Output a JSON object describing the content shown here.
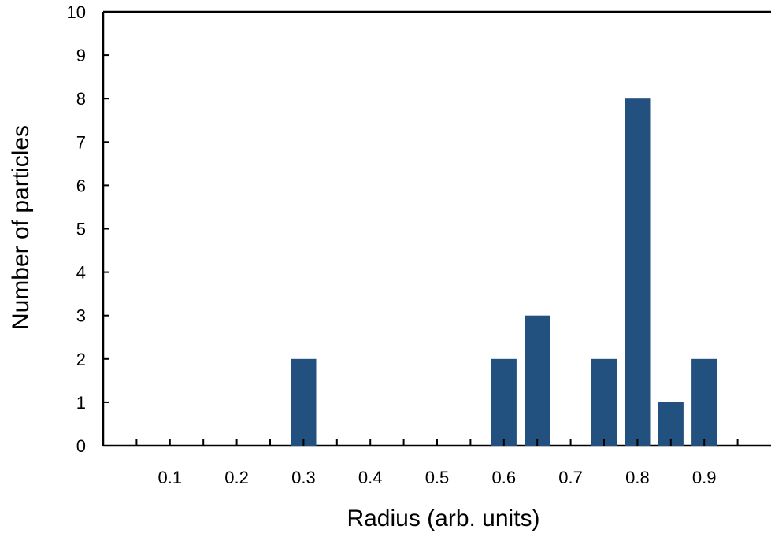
{
  "chart_data": {
    "type": "bar",
    "title": "",
    "xlabel": "Radius (arb. units)",
    "ylabel": "Number of  particles",
    "ylim": [
      0,
      10
    ],
    "yticks": [
      "0",
      "1",
      "2",
      "3",
      "4",
      "5",
      "6",
      "7",
      "8",
      "9",
      "10"
    ],
    "xtick_labels": [
      "0.1",
      "0.2",
      "0.3",
      "0.4",
      "0.5",
      "0.6",
      "0.7",
      "0.8",
      "0.9"
    ],
    "categories": [
      "0.05",
      "0.10",
      "0.15",
      "0.20",
      "0.25",
      "0.30",
      "0.35",
      "0.40",
      "0.45",
      "0.50",
      "0.55",
      "0.60",
      "0.65",
      "0.70",
      "0.75",
      "0.80",
      "0.85",
      "0.90",
      "0.95"
    ],
    "values": [
      0,
      0,
      0,
      0,
      0,
      2,
      0,
      0,
      0,
      0,
      0,
      2,
      3,
      0,
      2,
      8,
      1,
      2,
      0
    ],
    "grid": false,
    "legend": "none",
    "colors": {
      "bar": "#22507f",
      "axis": "#000000"
    }
  }
}
